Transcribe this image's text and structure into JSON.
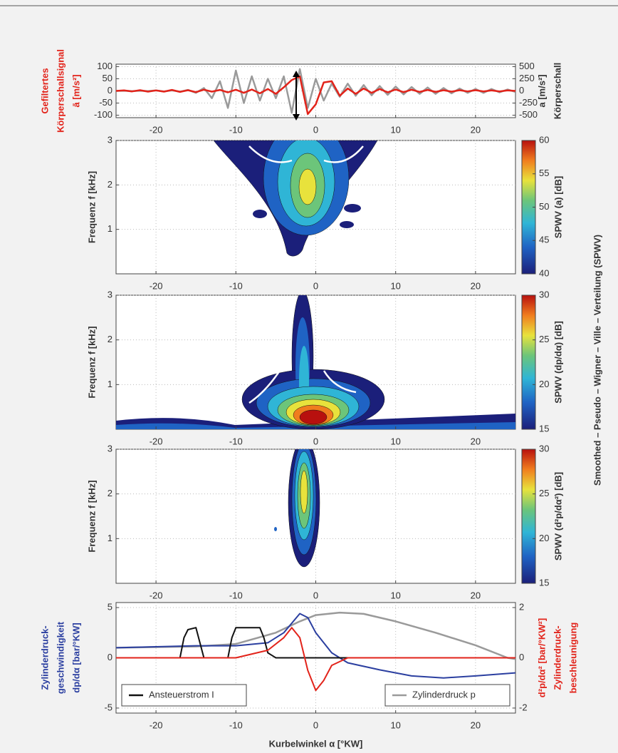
{
  "figure_label": "Smoothed – Pseudo – Wigner – Ville – Verteilung (SPWV)",
  "chart_data": [
    {
      "type": "line",
      "ylabel": [
        "Gefiltertes",
        "Körperschallsignal",
        "ā [m/s²]"
      ],
      "ylabel_color": "#e2231a",
      "y2label": [
        "a [m/s²]",
        "Körperschall"
      ],
      "y2label_color": "#333333",
      "xlim": [
        -25,
        25
      ],
      "xticks": [
        -20,
        -10,
        0,
        10,
        20
      ],
      "ylim": [
        -110,
        110
      ],
      "yticks": [
        -100,
        -50,
        0,
        50,
        100
      ],
      "y2lim": [
        -550,
        550
      ],
      "y2ticks": [
        -500,
        -250,
        0,
        250,
        500
      ],
      "grid": true,
      "x": [
        -25,
        -24,
        -23,
        -22,
        -21,
        -20,
        -19,
        -18,
        -17,
        -16,
        -15,
        -14,
        -13,
        -12,
        -11,
        -10,
        -9,
        -8,
        -7,
        -6,
        -5,
        -4,
        -3,
        -2,
        -1,
        0,
        1,
        2,
        3,
        4,
        5,
        6,
        7,
        8,
        9,
        10,
        11,
        12,
        13,
        14,
        15,
        16,
        17,
        18,
        19,
        20,
        21,
        22,
        23,
        24,
        25
      ],
      "series": [
        {
          "color": "#9a9a9a",
          "axis": "y2",
          "width": 2.5,
          "values": [
            0,
            5,
            -5,
            5,
            -5,
            10,
            -10,
            10,
            -15,
            20,
            -40,
            60,
            -150,
            200,
            -350,
            420,
            -250,
            300,
            -200,
            250,
            -150,
            300,
            -450,
            450,
            -350,
            250,
            -200,
            150,
            -120,
            150,
            -100,
            120,
            -90,
            100,
            -80,
            90,
            -70,
            80,
            -60,
            70,
            -60,
            60,
            -50,
            50,
            -40,
            40,
            -40,
            40,
            -30,
            30,
            -20
          ]
        },
        {
          "color": "#e2231a",
          "axis": "y",
          "width": 2.5,
          "values": [
            0,
            2,
            -2,
            3,
            -3,
            2,
            -3,
            4,
            -4,
            3,
            -5,
            5,
            -3,
            4,
            -6,
            5,
            -8,
            6,
            -10,
            8,
            -12,
            15,
            45,
            60,
            -95,
            -55,
            35,
            40,
            -20,
            10,
            -12,
            10,
            -8,
            8,
            -6,
            6,
            -5,
            5,
            -4,
            4,
            -4,
            3,
            -3,
            3,
            -2,
            3,
            -2,
            2,
            -2,
            2,
            0
          ]
        }
      ]
    },
    {
      "type": "contour",
      "ylabel": [
        "Frequenz f [kHz]"
      ],
      "xlim": [
        -25,
        25
      ],
      "xticks": [
        -20,
        -10,
        0,
        10,
        20
      ],
      "ylim": [
        0,
        3
      ],
      "yticks": [
        1,
        2,
        3
      ],
      "grid": true,
      "colorbar": {
        "label": "SPWV (a) [dB]",
        "lim": [
          40,
          60
        ],
        "ticks": [
          40,
          45,
          50,
          55,
          60
        ]
      }
    },
    {
      "type": "contour",
      "ylabel": [
        "Frequenz f [kHz]"
      ],
      "xlim": [
        -25,
        25
      ],
      "xticks": [
        -20,
        -10,
        0,
        10,
        20
      ],
      "ylim": [
        0,
        3
      ],
      "yticks": [
        1,
        2,
        3
      ],
      "grid": true,
      "colorbar": {
        "label": "SPWV (dp/dα) [dB]",
        "lim": [
          15,
          30
        ],
        "ticks": [
          15,
          20,
          25,
          30
        ]
      }
    },
    {
      "type": "contour",
      "ylabel": [
        "Frequenz f [kHz]"
      ],
      "xlim": [
        -25,
        25
      ],
      "xticks": [
        -20,
        -10,
        0,
        10,
        20
      ],
      "ylim": [
        0,
        3
      ],
      "yticks": [
        1,
        2,
        3
      ],
      "grid": true,
      "colorbar": {
        "label": "SPWV (d²p/dα²) [dB]",
        "lim": [
          15,
          30
        ],
        "ticks": [
          15,
          20,
          25,
          30
        ]
      }
    },
    {
      "type": "line",
      "ylabel": [
        "Zylinderdruck-",
        "geschwindigkeit",
        "dp/dα [bar/°KW]"
      ],
      "ylabel_color": "#2b3fa0",
      "y2label": [
        "d²p/dα² [bar/°KW²]",
        "Zylinderdruck-",
        "beschleunigung"
      ],
      "y2label_color": "#e2231a",
      "xlabel": "Kurbelwinkel α [°KW]",
      "xlim": [
        -25,
        25
      ],
      "xticks": [
        -20,
        -10,
        0,
        10,
        20
      ],
      "ylim": [
        -5.5,
        5.5
      ],
      "yticks": [
        -5,
        0,
        5
      ],
      "y2lim": [
        -2.2,
        2.2
      ],
      "y2ticks": [
        -2,
        0,
        2
      ],
      "grid": true,
      "series": [
        {
          "name": "Zylinderdruck p",
          "legend": "lower right",
          "color": "#9a9a9a",
          "axis": "y2",
          "width": 2.5,
          "x": [
            -25,
            -15,
            -10,
            -5,
            -2,
            0,
            3,
            6,
            10,
            15,
            20,
            24,
            25
          ],
          "values": [
            0.4,
            0.45,
            0.55,
            1.0,
            1.45,
            1.7,
            1.8,
            1.75,
            1.45,
            1.0,
            0.5,
            0.0,
            -0.05
          ]
        },
        {
          "color": "#2b3fa0",
          "axis": "y",
          "width": 2,
          "x": [
            -25,
            -20,
            -15,
            -10,
            -6,
            -4,
            -2,
            -1,
            0,
            2,
            4,
            8,
            12,
            16,
            20,
            25
          ],
          "values": [
            1,
            1.1,
            1.2,
            1.2,
            1.5,
            2.5,
            4.4,
            4.0,
            2.5,
            0.5,
            -0.5,
            -1.2,
            -1.8,
            -2.0,
            -1.8,
            -1.5
          ]
        },
        {
          "name": "Ansteuerstrom I",
          "legend": "lower left",
          "color": "#111111",
          "axis": "y",
          "width": 2,
          "x": [
            -25,
            -17,
            -16.5,
            -16,
            -15,
            -14.5,
            -14,
            -11,
            -10.5,
            -10,
            -7,
            -6.5,
            -6,
            -5,
            25
          ],
          "values": [
            0,
            0,
            2,
            2.8,
            3,
            1.5,
            0,
            0,
            2,
            3,
            3,
            2,
            0.5,
            0,
            0
          ]
        },
        {
          "color": "#e2231a",
          "axis": "y2",
          "width": 2,
          "x": [
            -25,
            -10,
            -6,
            -4,
            -3,
            -2,
            -1,
            0,
            1,
            2,
            4,
            10,
            25
          ],
          "values": [
            0,
            0,
            0.3,
            0.8,
            1.2,
            0.8,
            -0.5,
            -1.3,
            -0.9,
            -0.3,
            0,
            0,
            0
          ]
        }
      ]
    }
  ]
}
